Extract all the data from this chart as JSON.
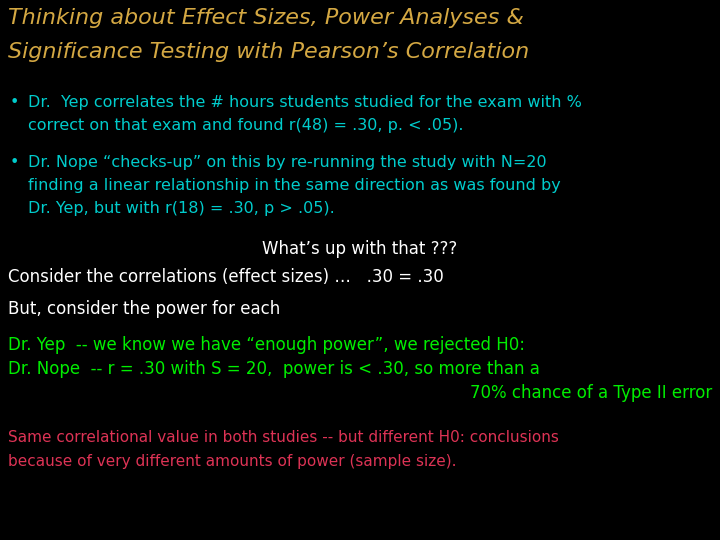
{
  "bg_color": "#000000",
  "title_line1": "Thinking about Effect Sizes, Power Analyses &",
  "title_line2": "Significance Testing with Pearson’s Correlation",
  "title_color": "#D4A843",
  "bullet1_line1": "Dr.  Yep correlates the # hours students studied for the exam with %",
  "bullet1_line2": "correct on that exam and found r(48) = .30, p. < .05).",
  "bullet2_line1": "Dr. Nope “checks-up” on this by re-running the study with N=20",
  "bullet2_line2": "finding a linear relationship in the same direction as was found by",
  "bullet2_line3": "Dr. Yep, but with r(18) = .30, p > .05).",
  "bullet_color": "#00CCCC",
  "what_text": "What’s up with that ???",
  "what_color": "#FFFFFF",
  "consider_corr": "Consider the correlations (effect sizes) …   .30 = .30",
  "consider_power": "But, consider the power for each",
  "consider_color": "#FFFFFF",
  "dr_yep_line": "Dr. Yep  -- we know we have “enough power”, we rejected H0:",
  "dr_nope_line1": "Dr. Nope  -- r = .30 with S = 20,  power is < .30, so more than a",
  "dr_nope_line2": "70% chance of a Type II error",
  "dr_color": "#00EE00",
  "same_line1": "Same correlational value in both studies -- but different H0: conclusions",
  "same_line2": "because of very different amounts of power (sample size).",
  "same_color": "#DD3355"
}
